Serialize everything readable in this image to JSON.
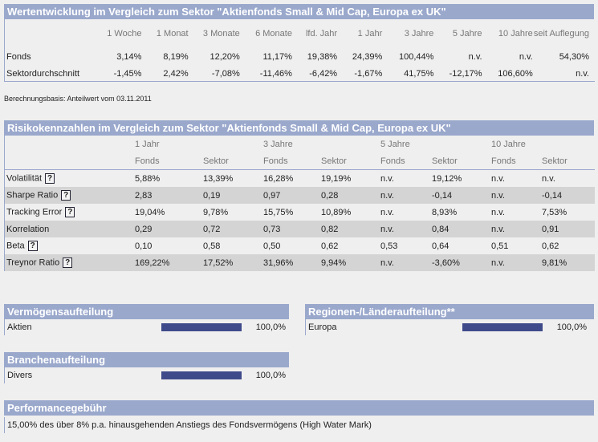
{
  "perf": {
    "title": "Wertentwicklung im Vergleich zum Sektor \"Aktienfonds Small & Mid Cap, Europa ex UK\"",
    "columns": [
      "1 Woche",
      "1 Monat",
      "3 Monate",
      "6 Monate",
      "lfd. Jahr",
      "1 Jahr",
      "3 Jahre",
      "5 Jahre",
      "10 Jahre",
      "seit Auflegung"
    ],
    "rows": [
      {
        "label": "Fonds",
        "values": [
          "3,14%",
          "8,19%",
          "12,20%",
          "11,17%",
          "19,38%",
          "24,39%",
          "100,44%",
          "n.v.",
          "n.v.",
          "54,30%"
        ]
      },
      {
        "label": "Sektordurchschnitt",
        "values": [
          "-1,45%",
          "2,42%",
          "-7,08%",
          "-11,46%",
          "-6,42%",
          "-1,67%",
          "41,75%",
          "-12,17%",
          "106,60%",
          "n.v."
        ]
      }
    ],
    "basis": "Berechnungsbasis: Anteilwert vom 03.11.2011"
  },
  "risk": {
    "title": "Risikokennzahlen im Vergleich zum Sektor \"Aktienfonds Small & Mid Cap, Europa ex UK\"",
    "periods": [
      "1 Jahr",
      "3 Jahre",
      "5 Jahre",
      "10 Jahre"
    ],
    "sub": [
      "Fonds",
      "Sektor"
    ],
    "help": "?",
    "rows": [
      {
        "label": "Volatilität",
        "help": true,
        "values": [
          "5,88%",
          "13,39%",
          "16,28%",
          "19,19%",
          "n.v.",
          "19,12%",
          "n.v.",
          "n.v."
        ]
      },
      {
        "label": "Sharpe Ratio",
        "help": true,
        "values": [
          "2,83",
          "0,19",
          "0,97",
          "0,28",
          "n.v.",
          "-0,14",
          "n.v.",
          "-0,14"
        ]
      },
      {
        "label": "Tracking Error",
        "help": true,
        "values": [
          "19,04%",
          "9,78%",
          "15,75%",
          "10,89%",
          "n.v.",
          "8,93%",
          "n.v.",
          "7,53%"
        ]
      },
      {
        "label": "Korrelation",
        "help": false,
        "values": [
          "0,29",
          "0,72",
          "0,73",
          "0,82",
          "n.v.",
          "0,84",
          "n.v.",
          "0,91"
        ]
      },
      {
        "label": "Beta",
        "help": true,
        "values": [
          "0,10",
          "0,58",
          "0,50",
          "0,62",
          "0,53",
          "0,64",
          "0,51",
          "0,62"
        ]
      },
      {
        "label": "Treynor Ratio",
        "help": true,
        "values": [
          "169,22%",
          "17,52%",
          "31,96%",
          "9,94%",
          "n.v.",
          "-3,60%",
          "n.v.",
          "9,81%"
        ]
      }
    ]
  },
  "alloc": {
    "title": "Vermögensaufteilung",
    "label": "Aktien",
    "value": "100,0%",
    "fraction": 1.0
  },
  "region": {
    "title": "Regionen-/Länderaufteilung**",
    "label": "Europa",
    "value": "100,0%",
    "fraction": 1.0
  },
  "branch": {
    "title": "Branchenaufteilung",
    "label": "Divers",
    "value": "100,0%",
    "fraction": 1.0
  },
  "fee": {
    "title": "Performancegebühr",
    "text": "15,00% des über 8% p.a. hinausgehenden Anstiegs des Fondsvermögens (High Water Mark)"
  },
  "colors": {
    "header": "#9aa8cc",
    "bar": "#3f4a8a"
  }
}
